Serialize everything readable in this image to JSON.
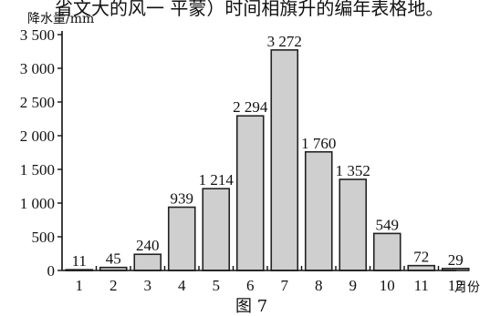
{
  "header_fragment": "省文大的风一 平蒙）时间相旗升的编年表格地。",
  "chart_data": {
    "type": "bar",
    "title": "",
    "ylabel": "降水量/mm",
    "xlabel": "月份",
    "caption": "图 7",
    "categories": [
      "1",
      "2",
      "3",
      "4",
      "5",
      "6",
      "7",
      "8",
      "9",
      "10",
      "11",
      "12"
    ],
    "values": [
      11,
      45,
      240,
      939,
      1214,
      2294,
      3272,
      1760,
      1352,
      549,
      72,
      29
    ],
    "value_labels": [
      "11",
      "45",
      "240",
      "939",
      "1 214",
      "2 294",
      "3 272",
      "1 760",
      "1 352",
      "549",
      "72",
      "29"
    ],
    "ylim": [
      0,
      3500
    ],
    "yticks": [
      0,
      500,
      1000,
      1500,
      2000,
      2500,
      3000,
      3500
    ],
    "ytick_labels": [
      "0",
      "500",
      "1 000",
      "1 500",
      "2 000",
      "2 500",
      "3 000",
      "3 500"
    ],
    "grid": false,
    "legend": "none"
  }
}
